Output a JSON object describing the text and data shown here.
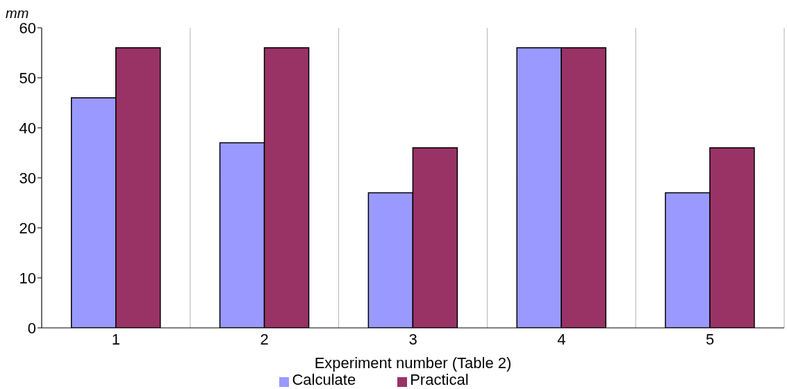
{
  "chart_data": {
    "type": "bar",
    "categories": [
      "1",
      "2",
      "3",
      "4",
      "5"
    ],
    "series": [
      {
        "name": "Calculate",
        "color": "#9999ff",
        "values": [
          46,
          37,
          27,
          56,
          27
        ]
      },
      {
        "name": "Practical",
        "color": "#993366",
        "values": [
          56,
          56,
          36,
          56,
          36
        ]
      }
    ],
    "xlabel": "Experiment number (Table 2)",
    "ylabel": "mm",
    "ylim": [
      0,
      60
    ],
    "yticks": [
      0,
      10,
      20,
      30,
      40,
      50,
      60
    ],
    "grid": "x",
    "legend": "bottom"
  }
}
